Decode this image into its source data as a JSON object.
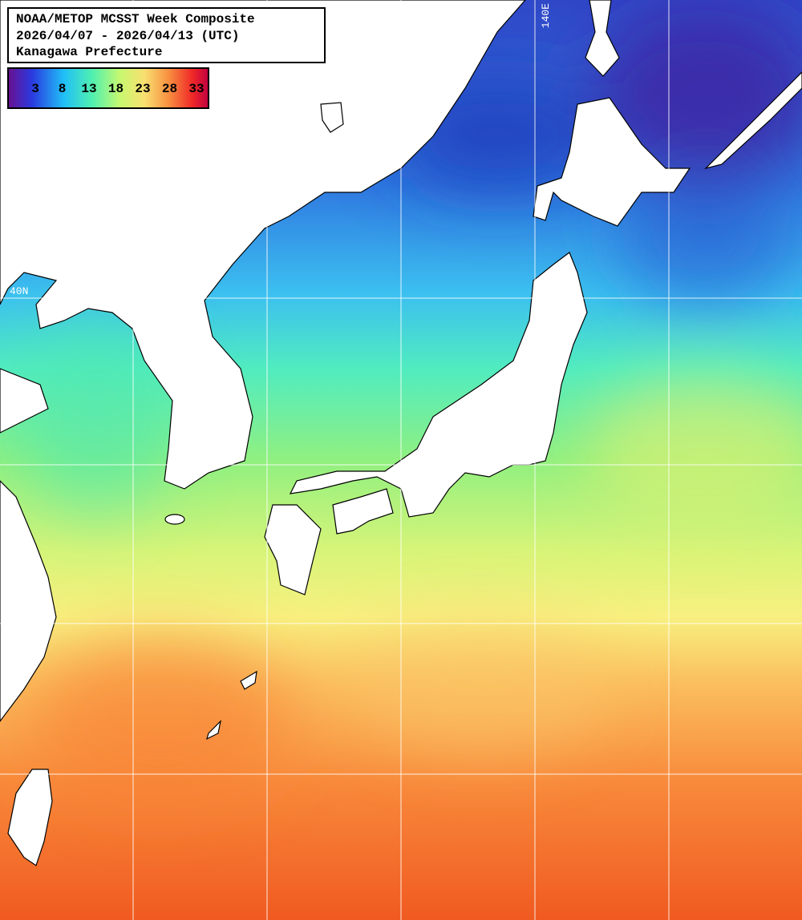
{
  "header": {
    "title_lines": [
      "NOAA/METOP MCSST Week Composite",
      "2026/04/07 - 2026/04/13 (UTC)",
      "Kanagawa Prefecture"
    ]
  },
  "colorbar": {
    "ticks": [
      3,
      8,
      13,
      18,
      23,
      28,
      33
    ]
  },
  "grid_labels": {
    "longitude": "140E",
    "latitude": "40N"
  }
}
